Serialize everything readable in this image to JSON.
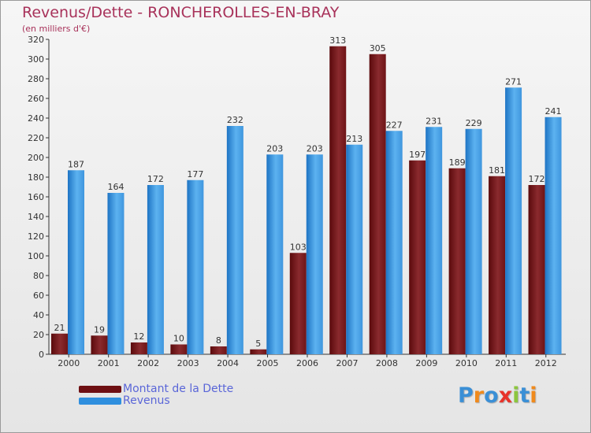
{
  "title": "Revenus/Dette - RONCHEROLLES-EN-BRAY",
  "subtitle": "(en milliers d'€)",
  "colors": {
    "dette": "#6e0f12",
    "revenus": "#2f8fde",
    "title": "#a8325a",
    "legend_text": "#5a66d8"
  },
  "legend": [
    {
      "name": "Montant de la Dette",
      "color": "#6e0f12"
    },
    {
      "name": "Revenus",
      "color": "#2f8fde"
    }
  ],
  "logo": {
    "text": "Proxiti",
    "letters": [
      {
        "char": "P",
        "color": "#3a8fd6"
      },
      {
        "char": "r",
        "color": "#f08a1c"
      },
      {
        "char": "o",
        "color": "#3a8fd6"
      },
      {
        "char": "x",
        "color": "#e8332a"
      },
      {
        "char": "i",
        "color": "#8cc63e"
      },
      {
        "char": "t",
        "color": "#3a8fd6"
      },
      {
        "char": "i",
        "color": "#f08a1c"
      }
    ]
  },
  "chart_data": {
    "type": "bar",
    "title": "Revenus/Dette - RONCHEROLLES-EN-BRAY",
    "ylabel": "(en milliers d'€)",
    "xlabel": "",
    "categories": [
      "2000",
      "2001",
      "2002",
      "2003",
      "2004",
      "2005",
      "2006",
      "2007",
      "2008",
      "2009",
      "2010",
      "2011",
      "2012"
    ],
    "series": [
      {
        "name": "Montant de la Dette",
        "values": [
          21,
          19,
          12,
          10,
          8,
          5,
          103,
          313,
          305,
          197,
          189,
          181,
          172
        ]
      },
      {
        "name": "Revenus",
        "values": [
          187,
          164,
          172,
          177,
          232,
          203,
          203,
          213,
          227,
          231,
          229,
          271,
          241
        ]
      }
    ],
    "ylim": [
      0,
      320
    ],
    "yticks": [
      0,
      20,
      40,
      60,
      80,
      100,
      120,
      140,
      160,
      180,
      200,
      220,
      240,
      260,
      280,
      300,
      320
    ],
    "grid": false,
    "legend_position": "bottom-left"
  }
}
